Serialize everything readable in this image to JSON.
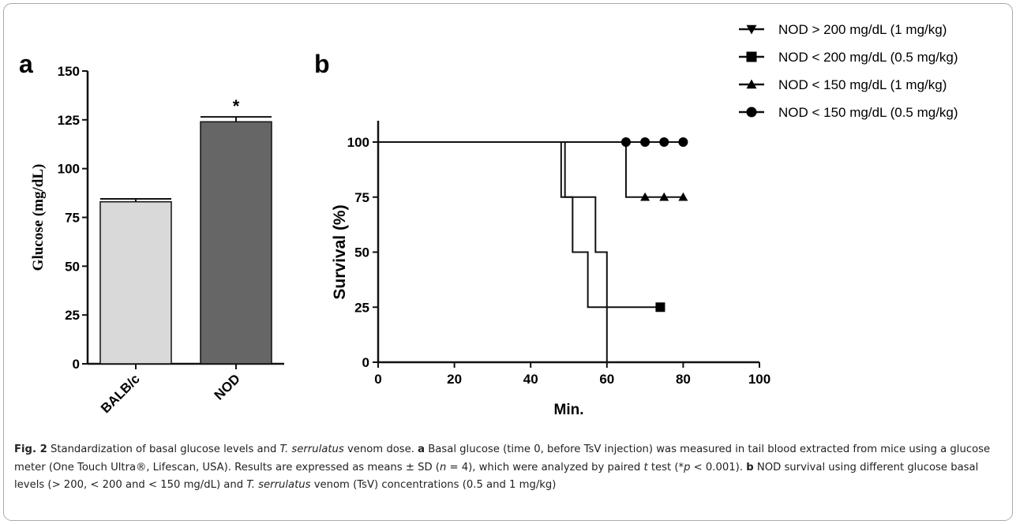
{
  "figure": {
    "caption_parts": [
      {
        "t": "Fig. 2",
        "s": "b"
      },
      {
        "t": " Standardization of basal glucose levels and ",
        "s": ""
      },
      {
        "t": "T. serrulatus",
        "s": "i"
      },
      {
        "t": " venom dose. ",
        "s": ""
      },
      {
        "t": "a",
        "s": "b"
      },
      {
        "t": " Basal glucose (time 0, before TsV injection) was measured in tail blood extracted from mice using a glucose meter (One Touch Ultra®, Lifescan, USA). Results are expressed as means ± SD (",
        "s": ""
      },
      {
        "t": "n",
        "s": "i"
      },
      {
        "t": " = 4), which were analyzed by paired ",
        "s": ""
      },
      {
        "t": "t",
        "s": "i"
      },
      {
        "t": " test (*",
        "s": ""
      },
      {
        "t": "p",
        "s": "i"
      },
      {
        "t": " < 0.001). ",
        "s": ""
      },
      {
        "t": "b",
        "s": "b"
      },
      {
        "t": " NOD survival using different glucose basal levels (> 200, < 200 and < 150 mg/dL) and ",
        "s": ""
      },
      {
        "t": "T. serrulatus",
        "s": "i"
      },
      {
        "t": " venom (TsV) concentrations (0.5 and 1 mg/kg)",
        "s": ""
      }
    ]
  },
  "colors": {
    "bar_balbc": "#d9d9d9",
    "bar_nod": "#666666",
    "axis": "#111111",
    "frame": "#aaaaaa"
  },
  "chart_data": [
    {
      "panel_label": "a",
      "type": "bar",
      "categories": [
        "BALB/c",
        "NOD"
      ],
      "values": [
        83,
        124
      ],
      "error": [
        1.5,
        2.5
      ],
      "significance": [
        "",
        "*"
      ],
      "ylabel": "Glucose (mg/dL)",
      "xlabel": "",
      "ylim": [
        0,
        150
      ],
      "yticks": [
        0,
        25,
        50,
        75,
        100,
        125,
        150
      ],
      "grid": false,
      "legend": "none"
    },
    {
      "panel_label": "b",
      "type": "line",
      "step": true,
      "xlabel": "Min.",
      "ylabel": "Survival (%)",
      "xlim": [
        0,
        100
      ],
      "ylim": [
        0,
        100
      ],
      "xticks": [
        0,
        20,
        40,
        60,
        80,
        100
      ],
      "yticks": [
        0,
        25,
        50,
        75,
        100
      ],
      "grid": false,
      "legend": "top-right",
      "series": [
        {
          "name": "NOD > 200 mg/dL (1 mg/kg)",
          "marker": "triangle-down",
          "x": [
            0,
            49,
            57,
            60
          ],
          "y": [
            100,
            75,
            50,
            0
          ],
          "censor": []
        },
        {
          "name": "NOD < 200 mg/dL (0.5 mg/kg)",
          "marker": "square",
          "x": [
            0,
            48,
            51,
            55,
            74
          ],
          "y": [
            100,
            75,
            50,
            25,
            25
          ],
          "censor": [
            [
              74,
              25
            ]
          ]
        },
        {
          "name": "NOD < 150 mg/dL (1 mg/kg)",
          "marker": "triangle-up",
          "x": [
            0,
            65,
            80
          ],
          "y": [
            100,
            75,
            75
          ],
          "censor": [
            [
              70,
              75
            ],
            [
              75,
              75
            ],
            [
              80,
              75
            ]
          ]
        },
        {
          "name": "NOD < 150 mg/dL (0.5 mg/kg)",
          "marker": "circle",
          "x": [
            0,
            80
          ],
          "y": [
            100,
            100
          ],
          "censor": [
            [
              65,
              100
            ],
            [
              70,
              100
            ],
            [
              75,
              100
            ],
            [
              80,
              100
            ]
          ]
        }
      ]
    }
  ]
}
